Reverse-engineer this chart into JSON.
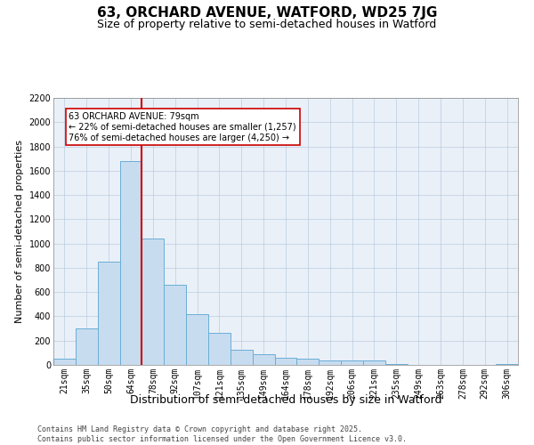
{
  "title1": "63, ORCHARD AVENUE, WATFORD, WD25 7JG",
  "title2": "Size of property relative to semi-detached houses in Watford",
  "xlabel": "Distribution of semi-detached houses by size in Watford",
  "ylabel": "Number of semi-detached properties",
  "categories": [
    "21sqm",
    "35sqm",
    "50sqm",
    "64sqm",
    "78sqm",
    "92sqm",
    "107sqm",
    "121sqm",
    "135sqm",
    "149sqm",
    "164sqm",
    "178sqm",
    "192sqm",
    "206sqm",
    "221sqm",
    "235sqm",
    "249sqm",
    "263sqm",
    "278sqm",
    "292sqm",
    "306sqm"
  ],
  "values": [
    55,
    300,
    850,
    1680,
    1040,
    660,
    420,
    265,
    125,
    85,
    60,
    50,
    40,
    40,
    40,
    10,
    0,
    0,
    0,
    0,
    10
  ],
  "bar_color": "#c8dcf0",
  "bar_edge_color": "#6aaed6",
  "vline_index": 4,
  "annotation_text": "63 ORCHARD AVENUE: 79sqm\n← 22% of semi-detached houses are smaller (1,257)\n76% of semi-detached houses are larger (4,250) →",
  "annotation_box_color": "#ffffff",
  "annotation_box_edge": "#cc0000",
  "vline_color": "#cc0000",
  "ylim": [
    0,
    2200
  ],
  "yticks": [
    0,
    200,
    400,
    600,
    800,
    1000,
    1200,
    1400,
    1600,
    1800,
    2000,
    2200
  ],
  "background_color": "#eaf0f8",
  "footer1": "Contains HM Land Registry data © Crown copyright and database right 2025.",
  "footer2": "Contains public sector information licensed under the Open Government Licence v3.0.",
  "title1_fontsize": 11,
  "title2_fontsize": 9,
  "tick_fontsize": 7,
  "ylabel_fontsize": 8,
  "xlabel_fontsize": 9,
  "footer_fontsize": 6
}
